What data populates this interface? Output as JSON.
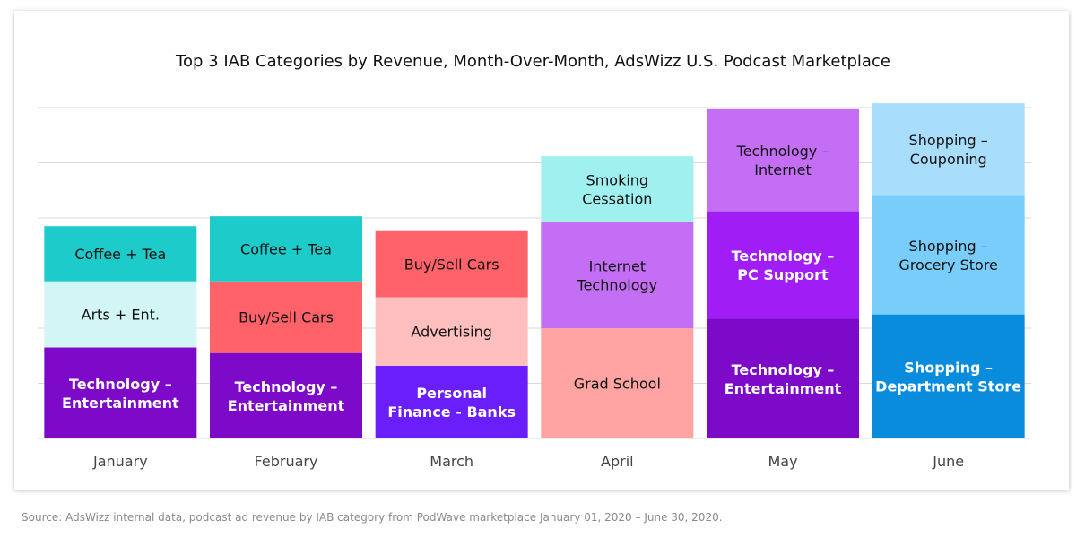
{
  "chart_data": {
    "type": "bar",
    "stacked": true,
    "title": "Top 3 IAB Categories by Revenue, Month-Over-Month, AdsWizz U.S. Podcast Marketplace",
    "xlabel": "",
    "ylabel": "",
    "ylim": [
      0,
      6
    ],
    "grid": true,
    "categories": [
      "January",
      "February",
      "March",
      "April",
      "May",
      "June"
    ],
    "stacks": [
      {
        "category": "January",
        "segments": [
          {
            "label": "Technology –\nEntertainment",
            "value": 1.65,
            "color": "#7D0AC8",
            "text_color": "#ffffff"
          },
          {
            "label": "Arts + Ent.",
            "value": 1.2,
            "color": "#D2F5F5",
            "text_color": "#111111"
          },
          {
            "label": "Coffee + Tea",
            "value": 1.0,
            "color": "#1ECBCB",
            "text_color": "#111111"
          }
        ]
      },
      {
        "category": "February",
        "segments": [
          {
            "label": "Technology –\nEntertainment",
            "value": 1.55,
            "color": "#7D0AC8",
            "text_color": "#ffffff"
          },
          {
            "label": "Buy/Sell Cars",
            "value": 1.3,
            "color": "#FF6268",
            "text_color": "#111111"
          },
          {
            "label": "Coffee + Tea",
            "value": 1.18,
            "color": "#1ECBCB",
            "text_color": "#111111"
          }
        ]
      },
      {
        "category": "March",
        "segments": [
          {
            "label": "Personal\nFinance - Banks",
            "value": 1.32,
            "color": "#6A1FFA",
            "text_color": "#ffffff"
          },
          {
            "label": "Advertising",
            "value": 1.24,
            "color": "#FFBFBF",
            "text_color": "#111111"
          },
          {
            "label": "Buy/Sell Cars",
            "value": 1.2,
            "color": "#FF6268",
            "text_color": "#111111"
          }
        ]
      },
      {
        "category": "April",
        "segments": [
          {
            "label": "Grad School",
            "value": 2.0,
            "color": "#FFA3A3",
            "text_color": "#111111"
          },
          {
            "label": "Internet\nTechnology",
            "value": 1.92,
            "color": "#C36EF5",
            "text_color": "#111111"
          },
          {
            "label": "Smoking\nCessation",
            "value": 1.2,
            "color": "#A0F0F0",
            "text_color": "#111111"
          }
        ]
      },
      {
        "category": "May",
        "segments": [
          {
            "label": "Technology –\nEntertainment",
            "value": 2.17,
            "color": "#7D0AC8",
            "text_color": "#ffffff"
          },
          {
            "label": "Technology –\nPC Support",
            "value": 1.95,
            "color": "#A01EF5",
            "text_color": "#ffffff"
          },
          {
            "label": "Technology –\nInternet",
            "value": 1.85,
            "color": "#C36EF5",
            "text_color": "#111111"
          }
        ]
      },
      {
        "category": "June",
        "segments": [
          {
            "label": "Shopping –\nDepartment Store",
            "value": 2.25,
            "color": "#0A8CDC",
            "text_color": "#ffffff"
          },
          {
            "label": "Shopping –\nGrocery Store",
            "value": 2.15,
            "color": "#78CDFA",
            "text_color": "#111111"
          },
          {
            "label": "Shopping –\nCouponing",
            "value": 1.68,
            "color": "#A8DEFC",
            "text_color": "#111111"
          }
        ]
      }
    ],
    "source": "Source: AdsWizz internal data, podcast ad revenue by IAB category from PodWave marketplace January 01, 2020 – June 30, 2020."
  }
}
